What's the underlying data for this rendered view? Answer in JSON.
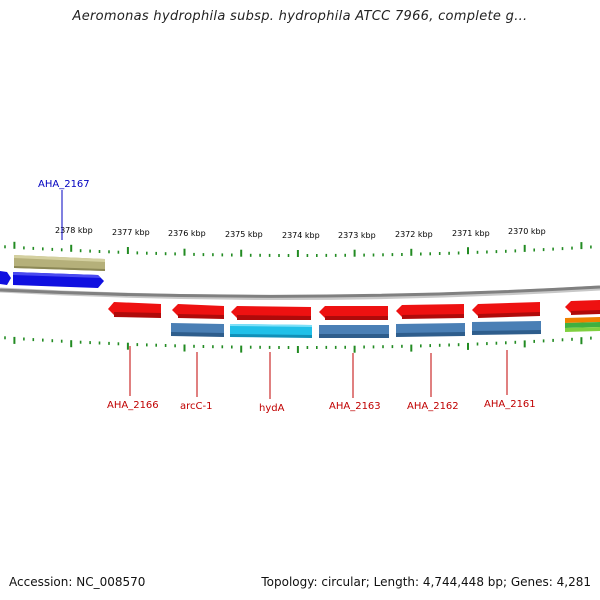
{
  "title": "Aeromonas hydrophila subsp. hydrophila ATCC 7966, complete g...",
  "footer": {
    "accession": "Accession: NC_008570",
    "summary": "Topology: circular; Length: 4,744,448 bp; Genes: 4,281"
  },
  "ticks": [
    "2378 kbp",
    "2377 kbp",
    "2376 kbp",
    "2375 kbp",
    "2374 kbp",
    "2373 kbp",
    "2372 kbp",
    "2371 kbp",
    "2370 kbp"
  ],
  "gene_labels": [
    {
      "text": "AHA_2167",
      "color": "#0000c0"
    },
    {
      "text": "AHA_2166",
      "color": "#c00000"
    },
    {
      "text": "arcC-1",
      "color": "#c00000"
    },
    {
      "text": "hydA",
      "color": "#c00000"
    },
    {
      "text": "AHA_2163",
      "color": "#c00000"
    },
    {
      "text": "AHA_2162",
      "color": "#c00000"
    },
    {
      "text": "AHA_2161",
      "color": "#c00000"
    }
  ],
  "colors": {
    "backbone": "#808080",
    "tick": "#228b22",
    "reverse_gene": "#ee1111",
    "forward_gene": "#1010e0",
    "steel_feature": "#4a7fb5",
    "cyan_feature": "#20c0e8",
    "olive_feature": "#b5b07a"
  }
}
